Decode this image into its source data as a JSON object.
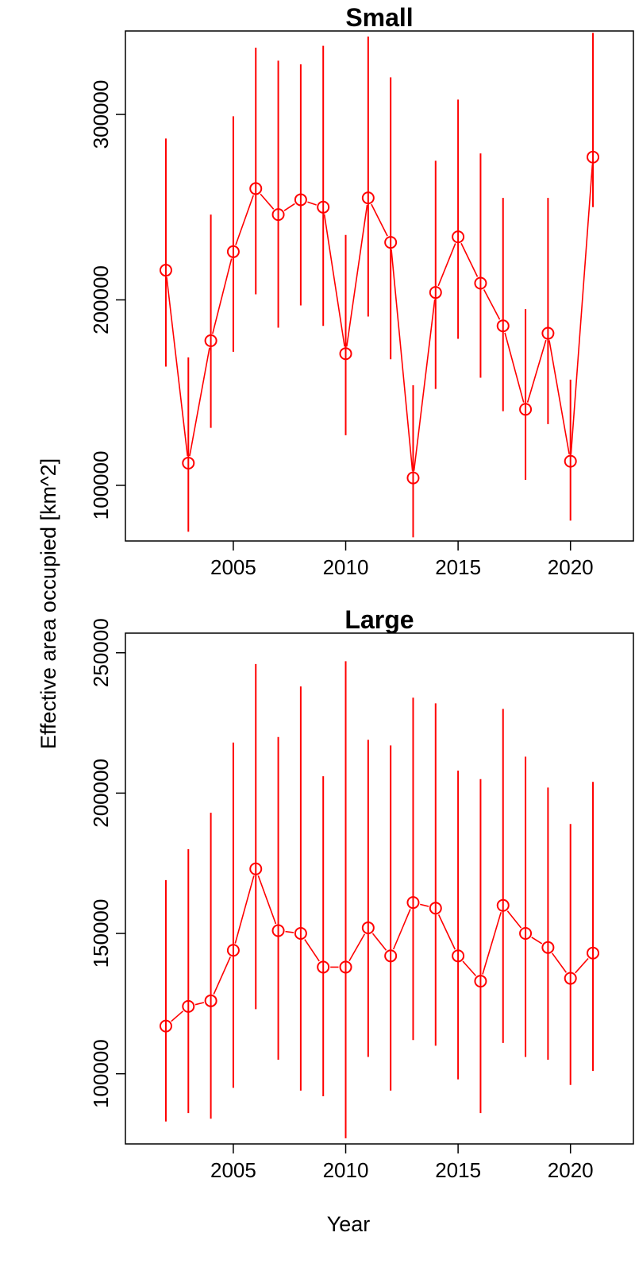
{
  "figure": {
    "ylabel": "Effective area occupied [km^2]",
    "xlabel": "Year",
    "color": "#ff0000"
  },
  "chart_data": [
    {
      "type": "line",
      "title": "Small",
      "marker": "open-circle",
      "error_bars": true,
      "x_ticks": [
        2005,
        2010,
        2015,
        2020
      ],
      "y_ticks": [
        100000,
        200000,
        300000
      ],
      "xlim": [
        2000.2,
        2022.8
      ],
      "ylim": [
        70000,
        345000
      ],
      "x": [
        2002,
        2003,
        2004,
        2005,
        2006,
        2007,
        2008,
        2009,
        2010,
        2011,
        2012,
        2013,
        2014,
        2015,
        2016,
        2017,
        2018,
        2019,
        2020,
        2021
      ],
      "values": [
        216000,
        112000,
        178000,
        226000,
        260000,
        246000,
        254000,
        250000,
        171000,
        255000,
        231000,
        104000,
        204000,
        234000,
        209000,
        186000,
        141000,
        182000,
        113000,
        277000
      ],
      "lower": [
        164000,
        75000,
        131000,
        172000,
        203000,
        185000,
        197000,
        186000,
        127000,
        191000,
        168000,
        72000,
        152000,
        179000,
        158000,
        140000,
        103000,
        133000,
        81000,
        250000
      ],
      "upper": [
        287000,
        169000,
        246000,
        299000,
        336000,
        329000,
        327000,
        337000,
        235000,
        342000,
        320000,
        154000,
        275000,
        308000,
        279000,
        255000,
        195000,
        255000,
        157000,
        344000
      ]
    },
    {
      "type": "line",
      "title": "Large",
      "marker": "open-circle",
      "error_bars": true,
      "x_ticks": [
        2005,
        2010,
        2015,
        2020
      ],
      "y_ticks": [
        100000,
        150000,
        200000,
        250000
      ],
      "xlim": [
        2000.2,
        2022.8
      ],
      "ylim": [
        75000,
        257000
      ],
      "x": [
        2002,
        2003,
        2004,
        2005,
        2006,
        2007,
        2008,
        2009,
        2010,
        2011,
        2012,
        2013,
        2014,
        2015,
        2016,
        2017,
        2018,
        2019,
        2020,
        2021
      ],
      "values": [
        117000,
        124000,
        126000,
        144000,
        173000,
        151000,
        150000,
        138000,
        138000,
        152000,
        142000,
        161000,
        159000,
        142000,
        133000,
        160000,
        150000,
        145000,
        134000,
        143000
      ],
      "lower": [
        83000,
        86000,
        84000,
        95000,
        123000,
        105000,
        94000,
        92000,
        77000,
        106000,
        94000,
        112000,
        110000,
        98000,
        86000,
        111000,
        106000,
        105000,
        96000,
        101000
      ],
      "upper": [
        169000,
        180000,
        193000,
        218000,
        246000,
        220000,
        238000,
        206000,
        247000,
        219000,
        217000,
        234000,
        232000,
        208000,
        205000,
        230000,
        213000,
        202000,
        189000,
        204000
      ]
    }
  ]
}
